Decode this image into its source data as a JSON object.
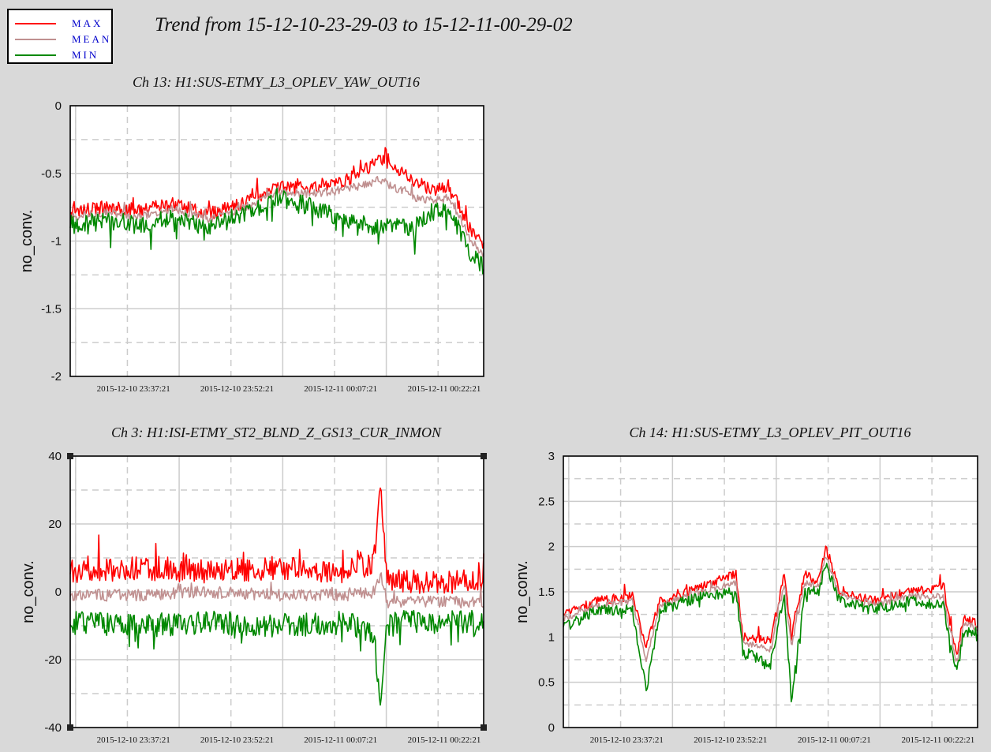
{
  "title": "Trend from 15-12-10-23-29-03 to 15-12-11-00-29-02",
  "legend": [
    {
      "label": "MAX",
      "color": "#ff0000"
    },
    {
      "label": "MEAN",
      "color": "#c09090"
    },
    {
      "label": "MIN",
      "color": "#008800"
    }
  ],
  "colors": {
    "max": "#ff0000",
    "mean": "#c09090",
    "min": "#008800",
    "background": "#d9d9d9"
  },
  "chart_data": [
    {
      "type": "line",
      "title": "Ch 13: H1:SUS-ETMY_L3_OPLEV_YAW_OUT16",
      "ylabel": "no_conv.",
      "ylim": [
        -2,
        0
      ],
      "yticks": [
        "0",
        "-0.5",
        "-1",
        "-1.5",
        "-2"
      ],
      "xticks": [
        "2015-12-10 23:37:21",
        "2015-12-10 23:52:21",
        "2015-12-11 00:07:21",
        "2015-12-11 00:22:21"
      ],
      "x_minutes": [
        0,
        5,
        10,
        15,
        20,
        25,
        30,
        35,
        40,
        45,
        50,
        52,
        55,
        58,
        60
      ],
      "series": [
        {
          "name": "MAX",
          "values": [
            -0.78,
            -0.75,
            -0.78,
            -0.72,
            -0.8,
            -0.72,
            -0.6,
            -0.6,
            -0.55,
            -0.4,
            -0.55,
            -0.62,
            -0.62,
            -0.9,
            -1.05
          ]
        },
        {
          "name": "MEAN",
          "values": [
            -0.82,
            -0.79,
            -0.82,
            -0.76,
            -0.84,
            -0.76,
            -0.64,
            -0.65,
            -0.62,
            -0.55,
            -0.68,
            -0.7,
            -0.68,
            -0.98,
            -1.12
          ]
        },
        {
          "name": "MIN",
          "values": [
            -0.88,
            -0.85,
            -0.88,
            -0.82,
            -0.9,
            -0.8,
            -0.68,
            -0.75,
            -0.85,
            -0.9,
            -0.9,
            -0.8,
            -0.75,
            -1.1,
            -1.2
          ]
        }
      ]
    },
    {
      "type": "line",
      "title": "Ch 3: H1:ISI-ETMY_ST2_BLND_Z_GS13_CUR_INMON",
      "ylabel": "no_conv.",
      "ylim": [
        -40,
        40
      ],
      "yticks": [
        "40",
        "20",
        "0",
        "-20",
        "-40"
      ],
      "xticks": [
        "2015-12-10 23:37:21",
        "2015-12-10 23:52:21",
        "2015-12-11 00:07:21",
        "2015-12-11 00:22:21"
      ],
      "x_minutes": [
        0,
        10,
        20,
        30,
        40,
        44,
        45,
        46,
        48,
        55,
        60
      ],
      "series": [
        {
          "name": "MAX",
          "values": [
            6,
            7,
            6,
            7,
            6,
            8,
            31,
            3,
            3,
            3,
            3
          ]
        },
        {
          "name": "MEAN",
          "values": [
            -1,
            -1,
            0,
            -1,
            -1,
            0,
            5,
            -3,
            -3,
            -3,
            -3
          ]
        },
        {
          "name": "MIN",
          "values": [
            -9,
            -10,
            -9,
            -10,
            -9,
            -12,
            -32,
            -10,
            -9,
            -9,
            -9
          ]
        }
      ]
    },
    {
      "type": "line",
      "title": "Ch 14: H1:SUS-ETMY_L3_OPLEV_PIT_OUT16",
      "ylabel": "no_conv.",
      "ylim": [
        0,
        3
      ],
      "yticks": [
        "3",
        "2.5",
        "2",
        "1.5",
        "1",
        "0.5",
        "0"
      ],
      "xticks": [
        "2015-12-10 23:37:21",
        "2015-12-10 23:52:21",
        "2015-12-11 00:07:21",
        "2015-12-11 00:22:21"
      ],
      "x_minutes": [
        0,
        5,
        10,
        12,
        14,
        20,
        25,
        26,
        30,
        32,
        33,
        35,
        37,
        38,
        40,
        45,
        50,
        55,
        57,
        58,
        60
      ],
      "series": [
        {
          "name": "MAX",
          "values": [
            1.25,
            1.4,
            1.45,
            0.9,
            1.4,
            1.55,
            1.7,
            1.0,
            0.95,
            1.7,
            1.0,
            1.7,
            1.6,
            2.0,
            1.5,
            1.4,
            1.5,
            1.55,
            0.8,
            1.2,
            1.15
          ]
        },
        {
          "name": "MEAN",
          "values": [
            1.2,
            1.35,
            1.4,
            0.75,
            1.35,
            1.5,
            1.6,
            0.95,
            0.85,
            1.6,
            0.9,
            1.6,
            1.55,
            1.9,
            1.45,
            1.35,
            1.45,
            1.45,
            0.7,
            1.15,
            1.1
          ]
        },
        {
          "name": "MIN",
          "values": [
            1.1,
            1.3,
            1.3,
            0.4,
            1.3,
            1.45,
            1.5,
            0.85,
            0.7,
            1.5,
            0.3,
            1.5,
            1.5,
            1.8,
            1.4,
            1.3,
            1.4,
            1.35,
            0.6,
            1.05,
            1.05
          ]
        }
      ]
    }
  ]
}
